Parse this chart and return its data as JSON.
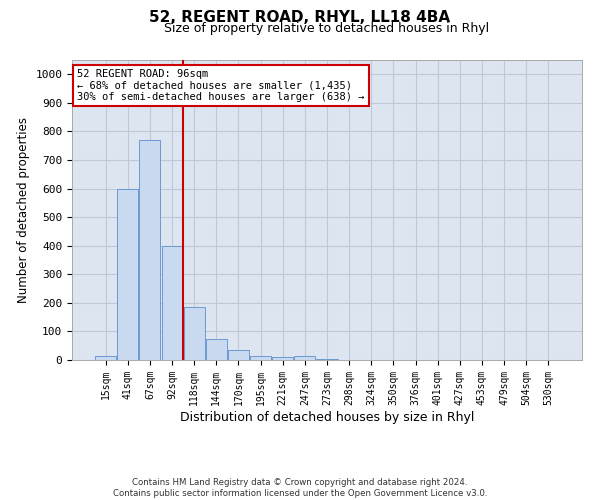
{
  "title": "52, REGENT ROAD, RHYL, LL18 4BA",
  "subtitle": "Size of property relative to detached houses in Rhyl",
  "xlabel": "Distribution of detached houses by size in Rhyl",
  "ylabel": "Number of detached properties",
  "categories": [
    "15sqm",
    "41sqm",
    "67sqm",
    "92sqm",
    "118sqm",
    "144sqm",
    "170sqm",
    "195sqm",
    "221sqm",
    "247sqm",
    "273sqm",
    "298sqm",
    "324sqm",
    "350sqm",
    "376sqm",
    "401sqm",
    "427sqm",
    "453sqm",
    "479sqm",
    "504sqm",
    "530sqm"
  ],
  "values": [
    15,
    600,
    770,
    400,
    185,
    75,
    35,
    15,
    10,
    15,
    5,
    0,
    0,
    0,
    0,
    0,
    0,
    0,
    0,
    0,
    0
  ],
  "bar_color": "#c9d9f0",
  "bar_edge_color": "#5b8fcc",
  "grid_color": "#c0c8d8",
  "background_color": "#dde6f0",
  "red_line_x": 3.5,
  "annotation_line1": "52 REGENT ROAD: 96sqm",
  "annotation_line2": "← 68% of detached houses are smaller (1,435)",
  "annotation_line3": "30% of semi-detached houses are larger (638) →",
  "annotation_box_color": "#ffffff",
  "annotation_box_edge": "#cc0000",
  "ylim": [
    0,
    1050
  ],
  "yticks": [
    0,
    100,
    200,
    300,
    400,
    500,
    600,
    700,
    800,
    900,
    1000
  ],
  "footer1": "Contains HM Land Registry data © Crown copyright and database right 2024.",
  "footer2": "Contains public sector information licensed under the Open Government Licence v3.0."
}
